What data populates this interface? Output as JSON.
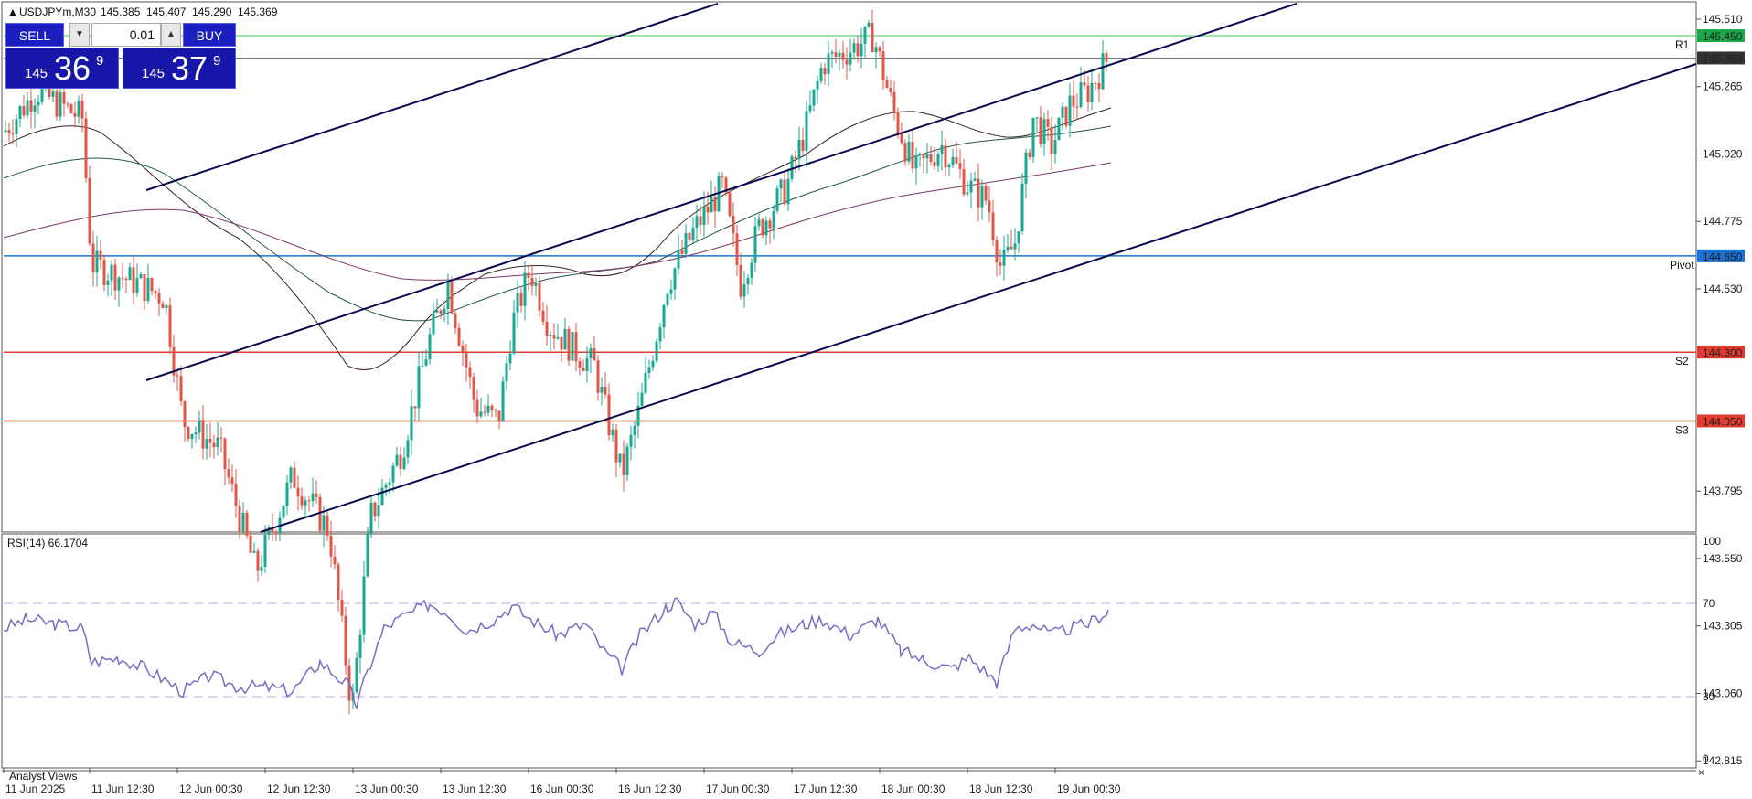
{
  "header": {
    "symbol": "USDJPYm,M30",
    "ohlc": [
      "145.385",
      "145.407",
      "145.290",
      "145.369"
    ]
  },
  "trade_panel": {
    "sell_label": "SELL",
    "buy_label": "BUY",
    "lot": "0.01",
    "sell_price": {
      "big": "145",
      "main": "36",
      "sup": "9"
    },
    "buy_price": {
      "big": "145",
      "main": "37",
      "sup": "9"
    }
  },
  "price_axis": {
    "ticks": [
      "145.510",
      "145.265",
      "145.020",
      "144.775",
      "144.530",
      "143.795",
      "143.550",
      "143.305",
      "143.060",
      "142.815"
    ],
    "labels": [
      {
        "text": "145.450",
        "price": 145.45,
        "bg": "#1aa84a"
      },
      {
        "text": "145.369",
        "price": 145.369,
        "bg": "#333333"
      },
      {
        "text": "144.650",
        "price": 144.65,
        "bg": "#1a73d4"
      },
      {
        "text": "144.300",
        "price": 144.3,
        "bg": "#e03b2e"
      },
      {
        "text": "144.050",
        "price": 144.05,
        "bg": "#e03b2e"
      }
    ]
  },
  "levels": [
    {
      "name": "R1",
      "price": 145.45,
      "color": "#3ec85a"
    },
    {
      "name": "Pivot",
      "price": 144.65,
      "color": "#1a73d4"
    },
    {
      "name": "S2",
      "price": 144.3,
      "color": "#e03b2e"
    },
    {
      "name": "S3",
      "price": 144.05,
      "color": "#e03b2e"
    }
  ],
  "rsi": {
    "title": "RSI(14) 66.1704",
    "ticks": [
      "100",
      "70",
      "30",
      "0"
    ],
    "color": "#7a6cc4"
  },
  "time_axis": {
    "labels": [
      "11 Jun 2025",
      "11 Jun 12:30",
      "12 Jun 00:30",
      "12 Jun 12:30",
      "13 Jun 00:30",
      "13 Jun 12:30",
      "16 Jun 00:30",
      "16 Jun 12:30",
      "17 Jun 00:30",
      "17 Jun 12:30",
      "18 Jun 00:30",
      "18 Jun 12:30",
      "19 Jun 00:30"
    ]
  },
  "bottom_tab": "Analyst Views",
  "colors": {
    "bull": "#1aa890",
    "bear": "#e0574a",
    "channel": "#0a0a50"
  }
}
